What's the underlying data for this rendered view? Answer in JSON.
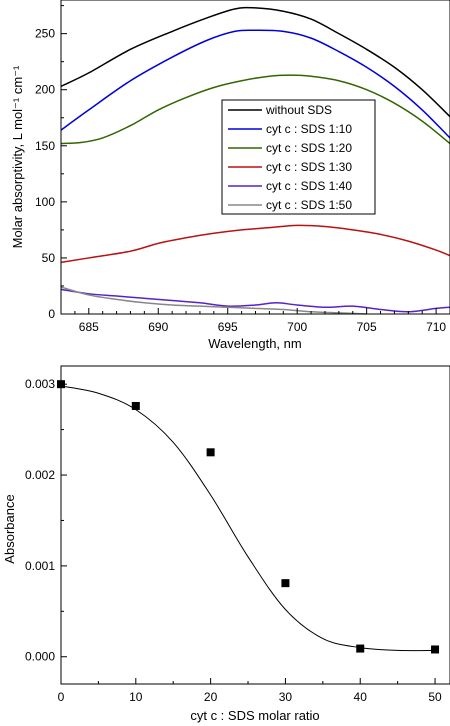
{
  "chart_data": [
    {
      "type": "line",
      "title": "",
      "xlabel": "Wavelength, nm",
      "ylabel": "Molar absorptivity, L mol⁻¹ cm⁻¹",
      "xlim": [
        683,
        711
      ],
      "ylim": [
        0,
        280
      ],
      "xticks": [
        "685",
        "690",
        "695",
        "700",
        "705",
        "710"
      ],
      "yticks": [
        "0",
        "50",
        "100",
        "150",
        "200",
        "250"
      ],
      "grid": false,
      "legend_position": "center-right",
      "series": [
        {
          "name": "without SDS",
          "color": "#000000",
          "x": [
            683,
            685,
            688,
            691,
            693.5,
            695.5,
            697,
            699,
            701,
            703,
            705,
            707,
            709,
            711
          ],
          "y": [
            203,
            215,
            236,
            252,
            264,
            272,
            273,
            270,
            263,
            250,
            236,
            220,
            200,
            176
          ]
        },
        {
          "name": "cyt c : SDS 1:10",
          "color": "#0000dd",
          "x": [
            683,
            685,
            688,
            691,
            693.5,
            695.5,
            697,
            699,
            701,
            703,
            705,
            707,
            709,
            711
          ],
          "y": [
            164,
            182,
            208,
            229,
            244,
            252,
            253,
            252,
            246,
            234,
            220,
            203,
            182,
            157
          ]
        },
        {
          "name": "cyt c : SDS 1:20",
          "color": "#336600",
          "x": [
            683,
            684.5,
            686,
            688,
            690,
            692,
            694,
            696,
            698,
            699.5,
            701,
            703,
            705,
            707,
            709,
            711
          ],
          "y": [
            152,
            153,
            157,
            168,
            182,
            193,
            202,
            208,
            212,
            213,
            212,
            208,
            200,
            188,
            172,
            152
          ]
        },
        {
          "name": "cyt c : SDS 1:30",
          "color": "#bb1111",
          "x": [
            683,
            685,
            688,
            690,
            692,
            694,
            696,
            698,
            700,
            702,
            704,
            706,
            708,
            710,
            711
          ],
          "y": [
            46,
            50,
            56,
            63,
            68,
            72,
            75,
            77,
            79,
            78,
            75,
            71,
            65,
            57,
            52
          ]
        },
        {
          "name": "cyt c : SDS 1:40",
          "color": "#5522cc",
          "x": [
            683,
            685,
            687,
            689,
            691,
            693,
            695,
            697,
            698.5,
            700,
            702,
            704,
            706,
            708,
            710,
            711
          ],
          "y": [
            22,
            18,
            16,
            14,
            12,
            10,
            7,
            8,
            10,
            8,
            6,
            7,
            4,
            2,
            5,
            6
          ]
        },
        {
          "name": "cyt c : SDS 1:50",
          "color": "#888888",
          "x": [
            683,
            685,
            687,
            689,
            691,
            693,
            695,
            697,
            699,
            701,
            703,
            705
          ],
          "y": [
            24,
            17,
            13,
            10,
            8,
            7,
            6,
            5,
            4,
            2,
            1,
            0
          ]
        }
      ]
    },
    {
      "type": "scatter",
      "title": "",
      "xlabel": "cyt  c : SDS molar ratio",
      "ylabel": "Absorbance",
      "xlim": [
        0,
        52
      ],
      "ylim": [
        -0.0003,
        0.0032
      ],
      "xticks": [
        "0",
        "10",
        "20",
        "30",
        "40",
        "50"
      ],
      "yticks": [
        "0.000",
        "0.001",
        "0.002",
        "0.003"
      ],
      "grid": false,
      "series": [
        {
          "marker": "square",
          "x": [
            0,
            10,
            20,
            30,
            40,
            50
          ],
          "y": [
            0.003,
            0.00276,
            0.00225,
            0.00081,
            9e-05,
            8e-05
          ]
        }
      ],
      "fit": {
        "curve": "sigmoid",
        "x": [
          0,
          5,
          10,
          15,
          20,
          25,
          30,
          35,
          40,
          45,
          50
        ],
        "y": [
          0.00298,
          0.0029,
          0.00272,
          0.00236,
          0.00178,
          0.0011,
          0.00052,
          0.0002,
          0.0001,
          7e-05,
          7e-05
        ]
      }
    }
  ]
}
